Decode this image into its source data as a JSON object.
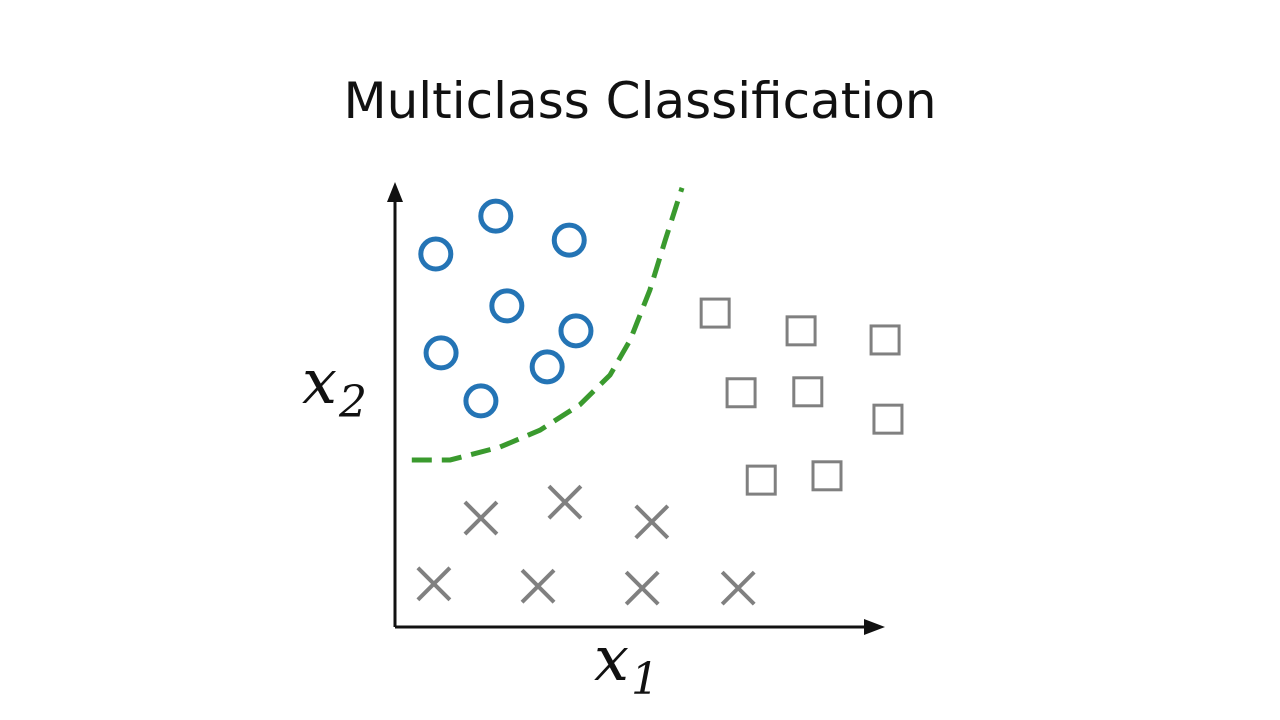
{
  "chart_data": {
    "type": "scatter",
    "title": "Multiclass Classification",
    "xlabel": "x",
    "xlabel_sub": "1",
    "ylabel": "x",
    "ylabel_sub": "2",
    "xlim": [
      0,
      10
    ],
    "ylim": [
      0,
      9
    ],
    "grid": false,
    "ticks": false,
    "series": [
      {
        "marker": "circle",
        "color": "#2474b5",
        "points": [
          [
            0.85,
            7.77
          ],
          [
            2.1,
            8.56
          ],
          [
            3.63,
            8.06
          ],
          [
            2.33,
            6.69
          ],
          [
            0.96,
            5.71
          ],
          [
            3.77,
            6.17
          ],
          [
            3.17,
            5.42
          ],
          [
            1.79,
            4.71
          ]
        ]
      },
      {
        "marker": "square",
        "color": "#808080",
        "points": [
          [
            6.67,
            6.54
          ],
          [
            8.46,
            6.17
          ],
          [
            10.21,
            5.98
          ],
          [
            7.21,
            4.88
          ],
          [
            8.6,
            4.9
          ],
          [
            10.27,
            4.33
          ],
          [
            7.63,
            3.06
          ],
          [
            9.0,
            3.15
          ]
        ]
      },
      {
        "marker": "x",
        "color": "#808080",
        "points": [
          [
            1.79,
            2.27
          ],
          [
            3.54,
            2.6
          ],
          [
            5.35,
            2.19
          ],
          [
            0.81,
            0.9
          ],
          [
            2.98,
            0.85
          ],
          [
            5.15,
            0.81
          ],
          [
            7.15,
            0.81
          ]
        ]
      }
    ],
    "decision_boundary": {
      "style": "dashed",
      "color": "#3a9a2e",
      "points": [
        [
          0.35,
          3.48
        ],
        [
          1.15,
          3.48
        ],
        [
          2.19,
          3.75
        ],
        [
          3.02,
          4.1
        ],
        [
          3.85,
          4.63
        ],
        [
          4.48,
          5.25
        ],
        [
          4.9,
          5.98
        ],
        [
          5.31,
          7.02
        ],
        [
          5.63,
          8.06
        ],
        [
          5.98,
          9.15
        ]
      ]
    },
    "axis_color": "#111111"
  }
}
